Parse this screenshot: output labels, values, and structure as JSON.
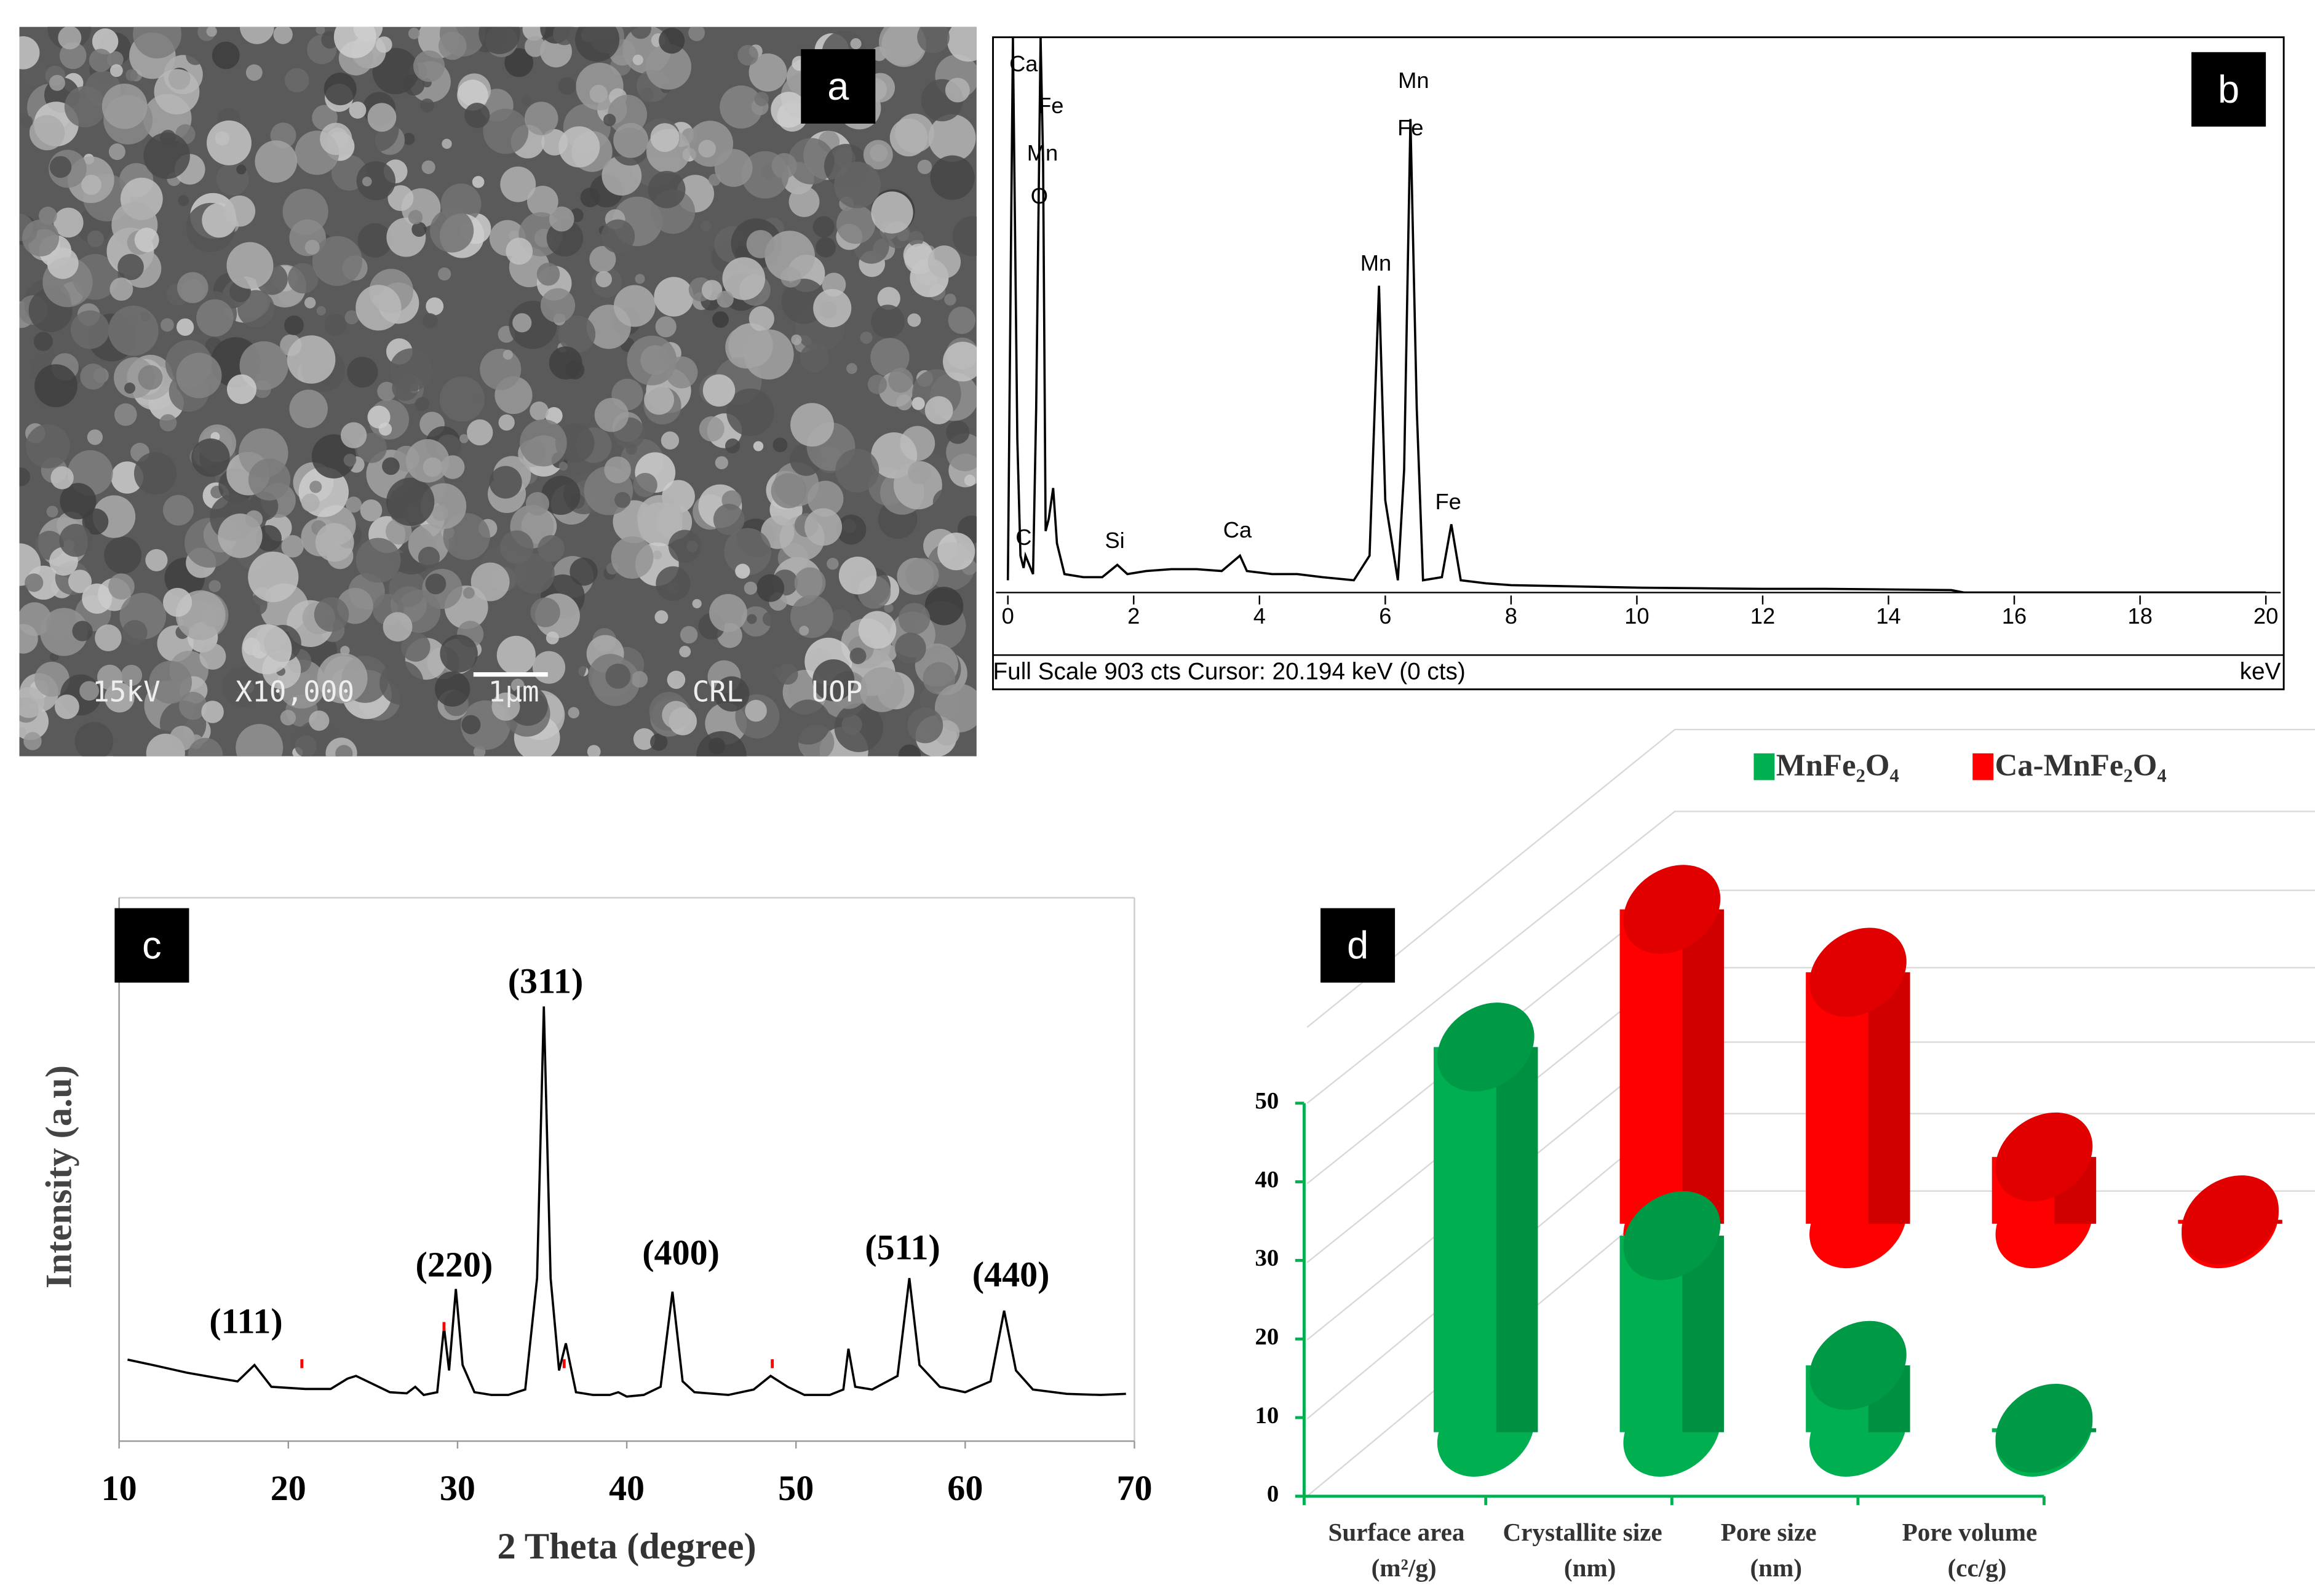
{
  "sem_image": {
    "label": "a",
    "annotations": [
      "15kV",
      "X10,000",
      "1μm",
      "CRL",
      "UOP"
    ]
  },
  "chart_data": [
    {
      "type": "line",
      "panel_label": "b",
      "x": [
        0,
        0.08,
        0.15,
        0.2,
        0.25,
        0.28,
        0.32,
        0.4,
        0.45,
        0.52,
        0.56,
        0.6,
        0.65,
        0.72,
        0.78,
        0.9,
        1.2,
        1.5,
        1.74,
        1.9,
        2.2,
        2.6,
        3,
        3.4,
        3.69,
        3.8,
        4.2,
        4.6,
        5,
        5.5,
        5.75,
        5.9,
        6,
        6.2,
        6.3,
        6.4,
        6.5,
        6.6,
        6.9,
        7.05,
        7.2,
        7.6,
        8,
        9,
        10,
        11,
        12,
        13,
        14,
        15,
        15.2,
        20
      ],
      "values": [
        20,
        903,
        250,
        60,
        40,
        60,
        50,
        30,
        300,
        903,
        700,
        100,
        120,
        170,
        80,
        30,
        25,
        25,
        45,
        30,
        35,
        38,
        38,
        35,
        60,
        35,
        30,
        30,
        25,
        20,
        60,
        499,
        150,
        20,
        200,
        770,
        300,
        20,
        25,
        111,
        20,
        15,
        12,
        10,
        8,
        7,
        6,
        6,
        5,
        4,
        0,
        0
      ],
      "color": "#000000",
      "xlim": [
        0,
        20
      ],
      "xticks": [
        0,
        2,
        4,
        6,
        8,
        10,
        12,
        14,
        16,
        18,
        20
      ],
      "ylim": [
        0,
        903
      ],
      "x_unit": "keV",
      "footer": "Full Scale 903 cts  Cursor: 20.194 keV (0 cts)",
      "annotations": [
        {
          "text": "Ca",
          "x": 0.25,
          "y": 857
        },
        {
          "text": "Fe",
          "x": 0.68,
          "y": 789
        },
        {
          "text": "Mn",
          "x": 0.55,
          "y": 712
        },
        {
          "text": "O",
          "x": 0.5,
          "y": 642
        },
        {
          "text": "C",
          "x": 0.25,
          "y": 87
        },
        {
          "text": "Si",
          "x": 1.7,
          "y": 82
        },
        {
          "text": "Ca",
          "x": 3.65,
          "y": 99
        },
        {
          "text": "Mn",
          "x": 5.85,
          "y": 533
        },
        {
          "text": "Mn",
          "x": 6.45,
          "y": 830
        },
        {
          "text": "Fe",
          "x": 6.4,
          "y": 753
        },
        {
          "text": "Fe",
          "x": 7.0,
          "y": 145
        }
      ]
    },
    {
      "type": "line",
      "panel_label": "c",
      "x_label": "2 Theta (degree)",
      "y_label": "Intensity (a.u)",
      "x": [
        10.5,
        12,
        14,
        16,
        17,
        18,
        18.5,
        19,
        21,
        22.5,
        23.5,
        24,
        25,
        26,
        27,
        27.5,
        28,
        28.8,
        29.2,
        29.5,
        29.9,
        30.3,
        31,
        32,
        33,
        34,
        34.7,
        35.1,
        35.5,
        36,
        36.4,
        37,
        38,
        39,
        39.5,
        40,
        41,
        42,
        42.7,
        43.3,
        44,
        46,
        47.5,
        48.5,
        49.5,
        50.5,
        52,
        52.8,
        53.1,
        53.5,
        54.5,
        56,
        56.7,
        57.3,
        58.5,
        60,
        61.5,
        62.3,
        63,
        64,
        66,
        68,
        69.5
      ],
      "values": [
        15,
        14,
        12.6,
        11.5,
        11,
        14,
        12,
        10,
        9.6,
        9.6,
        11.5,
        12,
        10.5,
        9,
        8.8,
        10,
        8.5,
        9,
        21,
        13,
        28,
        14,
        9,
        8.5,
        8.5,
        9.5,
        30,
        80,
        30,
        13,
        18,
        9,
        8.5,
        8.5,
        9,
        8.2,
        8.5,
        10,
        27.5,
        11,
        9,
        8.5,
        9.5,
        12,
        10,
        8.5,
        8.5,
        9.5,
        17,
        10,
        9.5,
        12,
        30,
        14,
        10,
        9,
        11,
        24,
        13,
        9.5,
        8.7,
        8.5,
        8.7
      ],
      "color": "#000000",
      "xlim": [
        10,
        70
      ],
      "xticks": [
        10,
        20,
        30,
        40,
        50,
        60,
        70
      ],
      "ylim": [
        0,
        100
      ],
      "markers": {
        "x": [
          20.8,
          29.2,
          36.3,
          48.6
        ],
        "color": "#ff0000"
      },
      "annotations": [
        {
          "text": "(111)",
          "x": 17.5,
          "y": 21.4
        },
        {
          "text": "(220)",
          "x": 29.8,
          "y": 31.8
        },
        {
          "text": "(311)",
          "x": 35.2,
          "y": 84
        },
        {
          "text": "(400)",
          "x": 43.2,
          "y": 34
        },
        {
          "text": "(511)",
          "x": 56.3,
          "y": 35
        },
        {
          "text": "(440)",
          "x": 62.7,
          "y": 30
        }
      ]
    },
    {
      "type": "bar3d",
      "panel_label": "d",
      "categories": [
        [
          "Surface area",
          "(m²/g)"
        ],
        [
          "Crystallite size",
          "(nm)"
        ],
        [
          "Pore size",
          "(nm)"
        ],
        [
          "Pore volume",
          "(cc/g)"
        ]
      ],
      "series": [
        {
          "name": "MnFe₂O₄",
          "color": "#00b050",
          "values": [
            49,
            25,
            8.5,
            0.5
          ]
        },
        {
          "name": "Ca-MnFe₂O₄",
          "color": "#ff0000",
          "values": [
            40,
            32,
            8.5,
            0.5
          ]
        }
      ],
      "ylim": [
        0,
        50
      ],
      "yticks": [
        0,
        10,
        20,
        30,
        40,
        50
      ]
    }
  ]
}
